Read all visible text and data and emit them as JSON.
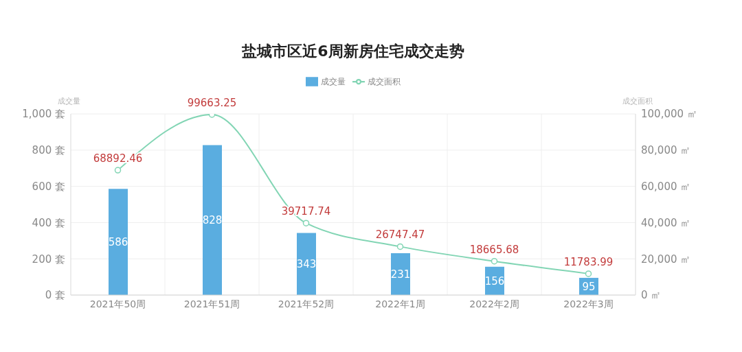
{
  "chart_data": {
    "type": "bar",
    "title": "盐城市区近6周新房住宅成交走势",
    "categories": [
      "2021年50周",
      "2021年51周",
      "2021年52周",
      "2022年1周",
      "2022年2周",
      "2022年3周"
    ],
    "ylabel": "成交量",
    "y2label": "成交面积",
    "series": [
      {
        "name": "成交量",
        "color": "#5aade0",
        "values": [
          586,
          828,
          343,
          231,
          156,
          95
        ]
      },
      {
        "name": "成交面积",
        "type": "line",
        "axis": "y2",
        "color": "#82d5b4",
        "values": [
          68892.46,
          99663.25,
          39717.74,
          26747.47,
          18665.68,
          11783.99
        ]
      }
    ],
    "ylim": [
      0,
      1000
    ],
    "yticks": [
      {
        "value": 0,
        "label": "0 套"
      },
      {
        "value": 200,
        "label": "200 套"
      },
      {
        "value": 400,
        "label": "400 套"
      },
      {
        "value": 600,
        "label": "600 套"
      },
      {
        "value": 800,
        "label": "800 套"
      },
      {
        "value": 1000,
        "label": "1,000 套"
      }
    ],
    "y2lim": [
      0,
      100000
    ],
    "y2ticks": [
      {
        "value": 0,
        "label": "0 ㎡"
      },
      {
        "value": 20000,
        "label": "20,000 ㎡"
      },
      {
        "value": 40000,
        "label": "40,000 ㎡"
      },
      {
        "value": 60000,
        "label": "60,000 ㎡"
      },
      {
        "value": 80000,
        "label": "80,000 ㎡"
      },
      {
        "value": 100000,
        "label": "100,000 ㎡"
      }
    ],
    "grid": true,
    "legend": "top",
    "marker": "circle",
    "data_labels": true
  }
}
